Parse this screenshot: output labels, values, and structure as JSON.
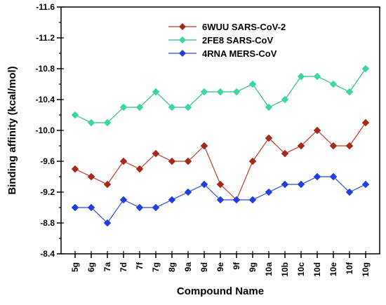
{
  "chart_data": {
    "type": "line",
    "xlabel": "Compound Name",
    "ylabel": "Binding affinity (kcal/mol)",
    "ylim": [
      -8.4,
      -11.6
    ],
    "y_axis_inverted": true,
    "y_ticks": [
      -8.4,
      -8.8,
      -9.2,
      -9.6,
      -10.0,
      -10.4,
      -10.8,
      -11.2,
      -11.6
    ],
    "y_tick_labels": [
      "-8.4",
      "-8.8",
      "-9.2",
      "-9.6",
      "-10.0",
      "-10.4",
      "-10.8",
      "-11.2",
      "-11.6"
    ],
    "categories": [
      "5g",
      "6g",
      "7a",
      "7d",
      "7f",
      "7g",
      "8g",
      "9a",
      "9d",
      "9e",
      "9f",
      "9g",
      "10a",
      "10b",
      "10c",
      "10d",
      "10e",
      "10f",
      "10g"
    ],
    "grid": false,
    "legend_position": "top-center",
    "series": [
      {
        "name": "6WUU SARS-CoV-2",
        "color": "#c0392b",
        "marker_color": "#a52a1a",
        "values": [
          -9.5,
          -9.4,
          -9.3,
          -9.6,
          -9.5,
          -9.7,
          -9.6,
          -9.6,
          -9.8,
          -9.3,
          -9.1,
          -9.6,
          -9.9,
          -9.7,
          -9.8,
          -10.0,
          -9.8,
          -9.8,
          -10.1
        ]
      },
      {
        "name": "2FE8 SARS-CoV",
        "color": "#2fb98f",
        "marker_color": "#3cd6a6",
        "values": [
          -10.2,
          -10.1,
          -10.1,
          -10.3,
          -10.3,
          -10.5,
          -10.3,
          -10.3,
          -10.5,
          -10.5,
          -10.5,
          -10.6,
          -10.3,
          -10.4,
          -10.7,
          -10.7,
          -10.6,
          -10.5,
          -10.8
        ]
      },
      {
        "name": "4RNA MERS-CoV",
        "color": "#2b4bd6",
        "marker_color": "#1f3fe0",
        "values": [
          -9.0,
          -9.0,
          -8.8,
          -9.1,
          -9.0,
          -9.0,
          -9.1,
          -9.2,
          -9.3,
          -9.1,
          -9.1,
          -9.1,
          -9.2,
          -9.3,
          -9.3,
          -9.4,
          -9.4,
          -9.2,
          -9.3
        ]
      }
    ]
  }
}
